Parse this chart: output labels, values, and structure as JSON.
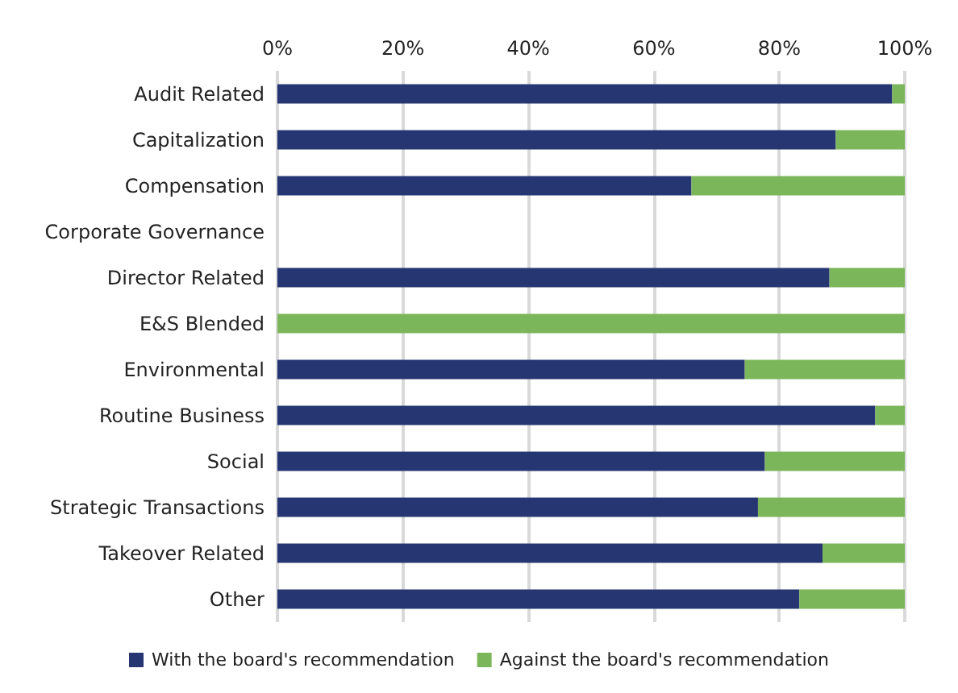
{
  "chart_data": {
    "type": "bar",
    "orientation": "horizontal",
    "stacked": true,
    "categories": [
      "Audit Related",
      "Capitalization",
      "Compensation",
      "Corporate Governance",
      "Director Related",
      "E&S Blended",
      "Environmental",
      "Routine Business",
      "Social",
      "Strategic Transactions",
      "Takeover Related",
      "Other"
    ],
    "series": [
      {
        "name": "With the board's recommendation",
        "color": "#263672",
        "values": [
          98,
          89,
          66,
          null,
          88,
          0,
          74.5,
          95.3,
          77.7,
          76.6,
          86.9,
          83.2
        ]
      },
      {
        "name": "Against the board's recommendation",
        "color": "#7cb65a",
        "values": [
          2,
          11,
          34,
          null,
          12,
          100,
          25.5,
          4.7,
          22.3,
          23.4,
          13.1,
          16.8
        ]
      }
    ],
    "xlim": [
      0,
      100
    ],
    "xticks": [
      {
        "value": 0,
        "label": "0%"
      },
      {
        "value": 20,
        "label": "20%"
      },
      {
        "value": 40,
        "label": "40%"
      },
      {
        "value": 60,
        "label": "60%"
      },
      {
        "value": 80,
        "label": "80%"
      },
      {
        "value": 100,
        "label": "100%"
      }
    ],
    "grid": "x",
    "legend": "bottom"
  }
}
